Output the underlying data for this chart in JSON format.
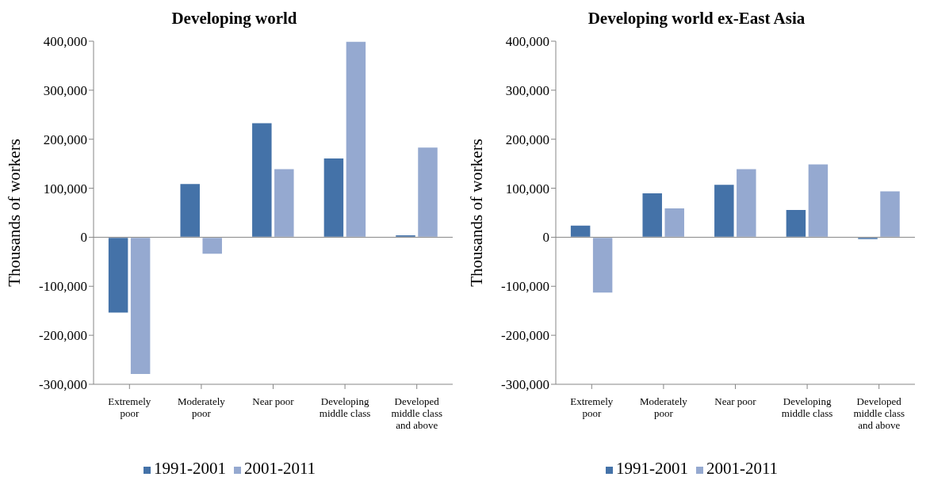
{
  "chart_data": [
    {
      "type": "bar",
      "title": "Developing world",
      "ylabel": "Thousands of workers",
      "categories": [
        "Extremely poor",
        "Moderately poor",
        "Near poor",
        "Developing middle class",
        "Developed middle class and above"
      ],
      "series": [
        {
          "name": "1991-2001",
          "color": "#4472a8",
          "values": [
            -155000,
            110000,
            234000,
            162000,
            5000
          ]
        },
        {
          "name": "2001-2011",
          "color": "#95a9d0",
          "values": [
            -280000,
            -35000,
            140000,
            400000,
            184000
          ]
        }
      ],
      "ylim": [
        -300000,
        400000
      ],
      "yticks": [
        {
          "value": -300000,
          "label": "-300,000"
        },
        {
          "value": -200000,
          "label": "-200,000"
        },
        {
          "value": -100000,
          "label": "-100,000"
        },
        0,
        {
          "value": 100000,
          "label": "100,000"
        },
        {
          "value": 200000,
          "label": "200,000"
        },
        {
          "value": 300000,
          "label": "300,000"
        },
        {
          "value": 400000,
          "label": "400,000"
        }
      ],
      "legend": "bottom"
    },
    {
      "type": "bar",
      "title": "Developing world ex-East Asia",
      "ylabel": "Thousands of workers",
      "categories": [
        "Extremely poor",
        "Moderately poor",
        "Near poor",
        "Developing middle class",
        "Developed middle class and above"
      ],
      "series": [
        {
          "name": "1991-2001",
          "color": "#4472a8",
          "values": [
            25000,
            91000,
            108000,
            57000,
            -5000
          ]
        },
        {
          "name": "2001-2011",
          "color": "#95a9d0",
          "values": [
            -114000,
            60000,
            140000,
            150000,
            95000
          ]
        }
      ],
      "ylim": [
        -300000,
        400000
      ],
      "yticks": [
        {
          "value": -300000,
          "label": "-300,000"
        },
        {
          "value": -200000,
          "label": "-200,000"
        },
        {
          "value": -100000,
          "label": "-100,000"
        },
        0,
        {
          "value": 100000,
          "label": "100,000"
        },
        {
          "value": 200000,
          "label": "200,000"
        },
        {
          "value": 300000,
          "label": "300,000"
        },
        {
          "value": 400000,
          "label": "400,000"
        }
      ],
      "legend": "bottom"
    }
  ]
}
